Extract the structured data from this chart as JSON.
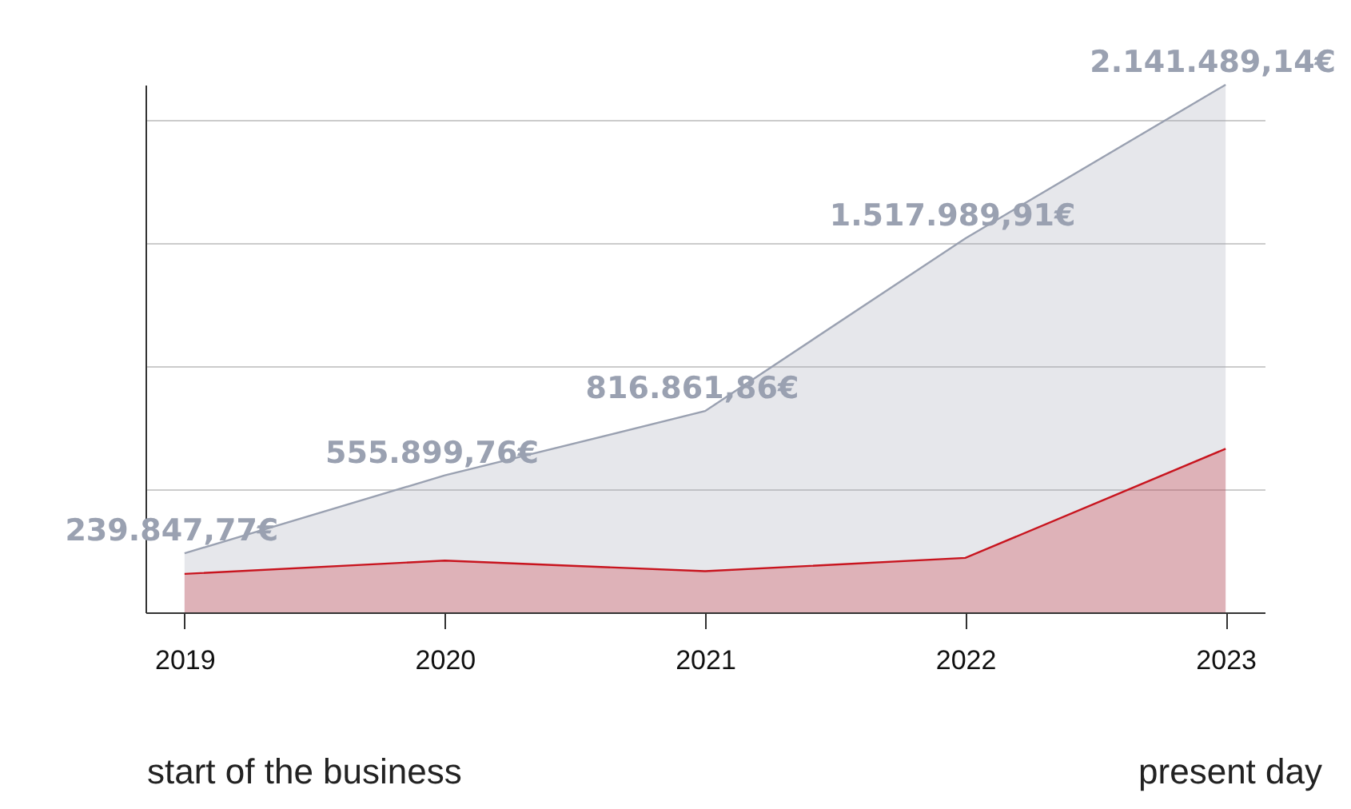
{
  "chart_data": {
    "type": "area",
    "categories": [
      "2019",
      "2020",
      "2021",
      "2022",
      "2023"
    ],
    "series": [
      {
        "color": "#9aa1b1",
        "values": [
          239847.77,
          555899.76,
          816861.86,
          1517989.91,
          2141489.14
        ],
        "value_labels": [
          "239.847,77€",
          "555.899,76€",
          "816.861,86€",
          "1.517.989,91€",
          "2.141.489,14€"
        ]
      },
      {
        "color": "#c8141e",
        "values": [
          156000,
          210000,
          167000,
          221000,
          664000
        ]
      }
    ],
    "grid": "y",
    "marker": "none",
    "annotations": [
      "start of the business",
      "present day"
    ]
  }
}
